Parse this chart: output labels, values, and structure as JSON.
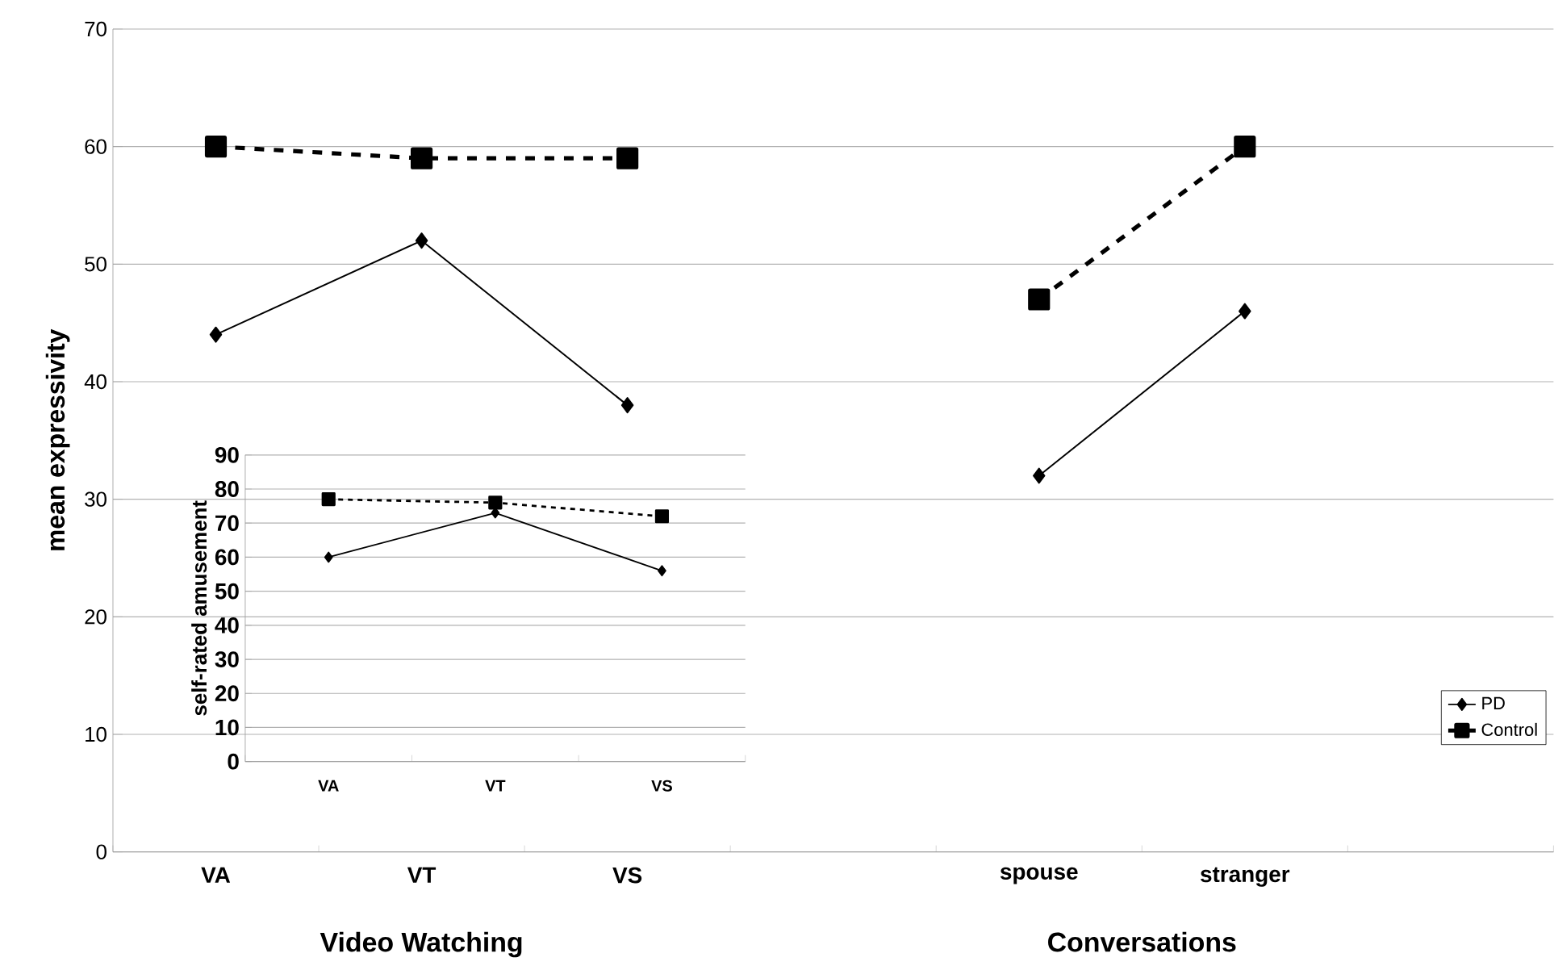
{
  "chart_data": [
    {
      "type": "line",
      "ylabel": "mean expressivity",
      "categories": [
        "VA",
        "VT",
        "VS",
        null,
        "spouse",
        "stranger",
        null
      ],
      "series": [
        {
          "name": "PD",
          "color": "#000000",
          "values": [
            44,
            52,
            38,
            null,
            32,
            46,
            null
          ],
          "marker": "diamond",
          "line_style": "solid"
        },
        {
          "name": "Control",
          "color": "#000000",
          "values": [
            60,
            59,
            59,
            null,
            47,
            60,
            null
          ],
          "marker": "square",
          "line_style": "dashed"
        }
      ],
      "ylim": [
        0,
        70
      ],
      "yticks": [
        0,
        10,
        20,
        30,
        40,
        50,
        60,
        70
      ],
      "grid": "y",
      "legend": "bottom right",
      "annotations": [
        "Video Watching",
        "Conversations"
      ]
    },
    {
      "type": "line",
      "ylabel": "self-rated amusement",
      "categories": [
        "VA",
        "VT",
        "VS"
      ],
      "series": [
        {
          "color": "#000000",
          "values": [
            60,
            73,
            56
          ],
          "marker": "diamond",
          "line_style": "solid"
        },
        {
          "color": "#000000",
          "values": [
            77,
            76,
            72
          ],
          "marker": "square",
          "line_style": "dashed"
        }
      ],
      "ylim": [
        0,
        90
      ],
      "yticks": [
        0,
        10,
        20,
        30,
        40,
        50,
        60,
        70,
        80,
        90
      ],
      "grid": "y"
    }
  ]
}
